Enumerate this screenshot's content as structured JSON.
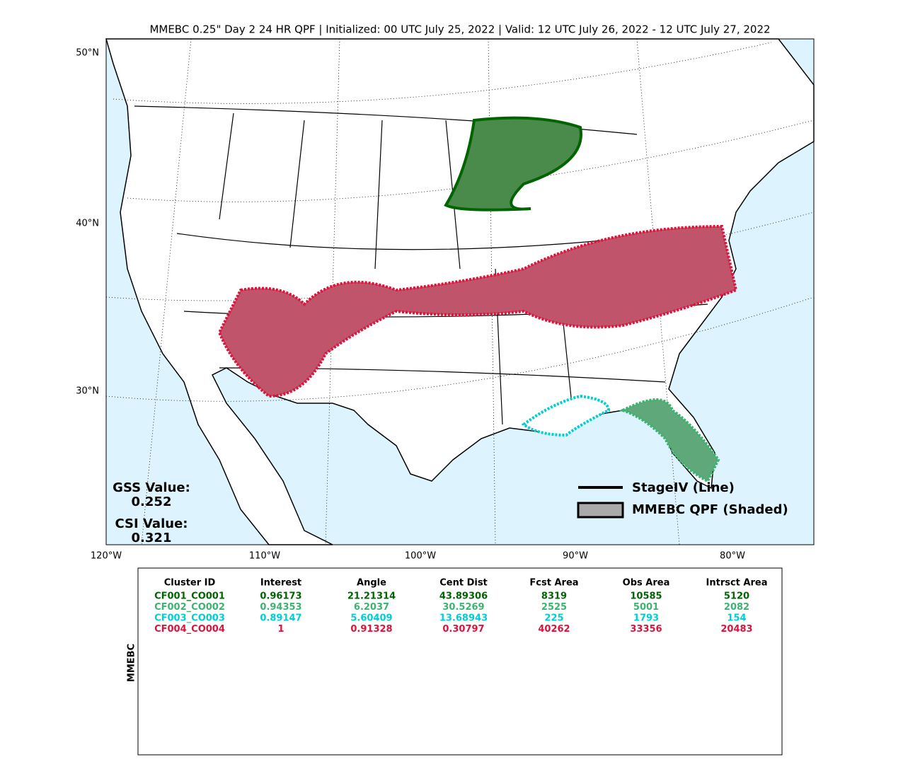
{
  "title": "MMEBC 0.25\" Day 2 24 HR QPF | Initialized: 00 UTC July 25, 2022 | Valid: 12 UTC July 26, 2022 - 12 UTC July 27, 2022",
  "map": {
    "lat_labels": [
      "50°N",
      "40°N",
      "30°N"
    ],
    "lon_labels": [
      "120°W",
      "110°W",
      "100°W",
      "90°W",
      "80°W"
    ],
    "gss": {
      "label": "GSS Value:",
      "value": "0.252"
    },
    "csi": {
      "label": "CSI Value:",
      "value": "0.321"
    },
    "legend": [
      "StageIV (Line)",
      "MMEBC QPF (Shaded)"
    ]
  },
  "table": {
    "side_label": "MMEBC",
    "headers": [
      "Cluster ID",
      "Interest",
      "Angle",
      "Cent Dist",
      "Fcst Area",
      "Obs Area",
      "Intrsct Area"
    ],
    "rows": [
      {
        "color": "#006400",
        "cells": [
          "CF001_CO001",
          "0.96173",
          "21.21314",
          "43.89306",
          "8319",
          "10585",
          "5120"
        ]
      },
      {
        "color": "#3cb371",
        "cells": [
          "CF002_CO002",
          "0.94353",
          "6.2037",
          "30.5269",
          "2525",
          "5001",
          "2082"
        ]
      },
      {
        "color": "#00ced1",
        "cells": [
          "CF003_CO003",
          "0.89147",
          "5.60409",
          "13.68943",
          "225",
          "1793",
          "154"
        ]
      },
      {
        "color": "#dc143c",
        "cells": [
          "CF004_CO004",
          "1",
          "0.91328",
          "0.30797",
          "40262",
          "33356",
          "20483"
        ]
      }
    ]
  }
}
